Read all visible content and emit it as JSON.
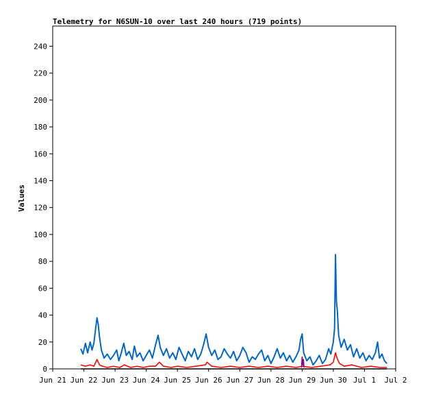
{
  "chart_data": {
    "type": "line",
    "title": "Telemetry for N6SUN-10 over last 240 hours (719 points)",
    "xlabel": "",
    "ylabel": "Values",
    "xlim": [
      "Jun 21",
      "Jul 2"
    ],
    "ylim": [
      0,
      255
    ],
    "x_ticks": [
      "Jun 21",
      "Jun 22",
      "Jun 23",
      "Jun 24",
      "Jun 25",
      "Jun 26",
      "Jun 27",
      "Jun 28",
      "Jun 29",
      "Jun 30",
      "Jul 1",
      "Jul 2"
    ],
    "y_ticks": [
      0,
      20,
      40,
      60,
      80,
      100,
      120,
      140,
      160,
      180,
      200,
      220,
      240
    ],
    "grid": false,
    "x_unit": "days since Jun 21 00:00",
    "series": [
      {
        "color": "#0066cc",
        "points": [
          [
            0.9,
            15
          ],
          [
            0.97,
            11
          ],
          [
            1.05,
            19
          ],
          [
            1.12,
            12
          ],
          [
            1.2,
            20
          ],
          [
            1.26,
            14
          ],
          [
            1.32,
            19
          ],
          [
            1.38,
            31
          ],
          [
            1.42,
            38
          ],
          [
            1.46,
            33
          ],
          [
            1.5,
            24
          ],
          [
            1.56,
            14
          ],
          [
            1.65,
            8
          ],
          [
            1.75,
            11
          ],
          [
            1.85,
            7
          ],
          [
            1.95,
            10
          ],
          [
            2.05,
            14
          ],
          [
            2.12,
            6
          ],
          [
            2.2,
            12
          ],
          [
            2.28,
            19
          ],
          [
            2.36,
            10
          ],
          [
            2.45,
            13
          ],
          [
            2.55,
            7
          ],
          [
            2.62,
            17
          ],
          [
            2.7,
            9
          ],
          [
            2.8,
            12
          ],
          [
            2.9,
            6
          ],
          [
            3.0,
            10
          ],
          [
            3.1,
            14
          ],
          [
            3.2,
            8
          ],
          [
            3.3,
            18
          ],
          [
            3.38,
            25
          ],
          [
            3.45,
            16
          ],
          [
            3.55,
            10
          ],
          [
            3.65,
            15
          ],
          [
            3.75,
            8
          ],
          [
            3.85,
            12
          ],
          [
            3.95,
            7
          ],
          [
            4.05,
            16
          ],
          [
            4.15,
            11
          ],
          [
            4.25,
            6
          ],
          [
            4.35,
            13
          ],
          [
            4.45,
            9
          ],
          [
            4.55,
            15
          ],
          [
            4.65,
            7
          ],
          [
            4.75,
            11
          ],
          [
            4.85,
            19
          ],
          [
            4.92,
            26
          ],
          [
            5.0,
            16
          ],
          [
            5.1,
            10
          ],
          [
            5.2,
            14
          ],
          [
            5.3,
            7
          ],
          [
            5.4,
            9
          ],
          [
            5.5,
            15
          ],
          [
            5.6,
            11
          ],
          [
            5.7,
            8
          ],
          [
            5.8,
            13
          ],
          [
            5.9,
            6
          ],
          [
            6.0,
            10
          ],
          [
            6.1,
            16
          ],
          [
            6.2,
            12
          ],
          [
            6.3,
            5
          ],
          [
            6.4,
            9
          ],
          [
            6.5,
            7
          ],
          [
            6.6,
            11
          ],
          [
            6.7,
            14
          ],
          [
            6.8,
            6
          ],
          [
            6.9,
            10
          ],
          [
            7.0,
            4
          ],
          [
            7.1,
            9
          ],
          [
            7.2,
            15
          ],
          [
            7.3,
            8
          ],
          [
            7.4,
            12
          ],
          [
            7.5,
            6
          ],
          [
            7.6,
            10
          ],
          [
            7.7,
            5
          ],
          [
            7.8,
            9
          ],
          [
            7.9,
            14
          ],
          [
            7.95,
            22
          ],
          [
            8.0,
            26
          ],
          [
            8.05,
            12
          ],
          [
            8.15,
            6
          ],
          [
            8.25,
            9
          ],
          [
            8.35,
            3
          ],
          [
            8.45,
            6
          ],
          [
            8.55,
            10
          ],
          [
            8.65,
            4
          ],
          [
            8.75,
            7
          ],
          [
            8.85,
            15
          ],
          [
            8.92,
            11
          ],
          [
            9.0,
            20
          ],
          [
            9.04,
            30
          ],
          [
            9.07,
            85
          ],
          [
            9.1,
            50
          ],
          [
            9.13,
            43
          ],
          [
            9.17,
            25
          ],
          [
            9.25,
            16
          ],
          [
            9.35,
            22
          ],
          [
            9.45,
            14
          ],
          [
            9.55,
            18
          ],
          [
            9.65,
            9
          ],
          [
            9.75,
            15
          ],
          [
            9.85,
            8
          ],
          [
            9.95,
            12
          ],
          [
            10.05,
            6
          ],
          [
            10.15,
            10
          ],
          [
            10.25,
            7
          ],
          [
            10.35,
            12
          ],
          [
            10.42,
            20
          ],
          [
            10.48,
            8
          ],
          [
            10.56,
            11
          ],
          [
            10.64,
            6
          ],
          [
            10.72,
            4
          ]
        ]
      },
      {
        "color": "#ff0000",
        "points": [
          [
            0.9,
            3
          ],
          [
            1.05,
            2
          ],
          [
            1.2,
            3
          ],
          [
            1.32,
            2
          ],
          [
            1.42,
            7
          ],
          [
            1.5,
            3
          ],
          [
            1.6,
            2
          ],
          [
            1.75,
            1
          ],
          [
            1.95,
            2
          ],
          [
            2.15,
            1
          ],
          [
            2.3,
            3
          ],
          [
            2.5,
            1
          ],
          [
            2.7,
            2
          ],
          [
            2.9,
            1
          ],
          [
            3.1,
            2
          ],
          [
            3.3,
            2
          ],
          [
            3.42,
            5
          ],
          [
            3.55,
            2
          ],
          [
            3.8,
            1
          ],
          [
            4.0,
            2
          ],
          [
            4.3,
            1
          ],
          [
            4.6,
            2
          ],
          [
            4.9,
            3
          ],
          [
            4.95,
            5
          ],
          [
            5.1,
            2
          ],
          [
            5.4,
            1
          ],
          [
            5.7,
            2
          ],
          [
            6.0,
            1
          ],
          [
            6.3,
            2
          ],
          [
            6.6,
            1
          ],
          [
            6.9,
            2
          ],
          [
            7.2,
            1
          ],
          [
            7.5,
            2
          ],
          [
            7.8,
            1
          ],
          [
            8.0,
            2
          ],
          [
            8.3,
            1
          ],
          [
            8.6,
            2
          ],
          [
            8.9,
            3
          ],
          [
            9.0,
            5
          ],
          [
            9.07,
            12
          ],
          [
            9.12,
            8
          ],
          [
            9.2,
            4
          ],
          [
            9.35,
            2
          ],
          [
            9.6,
            3
          ],
          [
            9.9,
            1
          ],
          [
            10.2,
            2
          ],
          [
            10.5,
            1
          ],
          [
            10.72,
            1
          ]
        ]
      },
      {
        "color": "#880088",
        "points": [
          [
            7.98,
            1
          ],
          [
            8.0,
            9
          ],
          [
            8.02,
            3
          ],
          [
            8.04,
            7
          ],
          [
            8.06,
            1
          ]
        ]
      },
      {
        "color": "#000000",
        "points": [
          [
            0.9,
            0
          ],
          [
            10.72,
            0
          ]
        ]
      }
    ]
  }
}
